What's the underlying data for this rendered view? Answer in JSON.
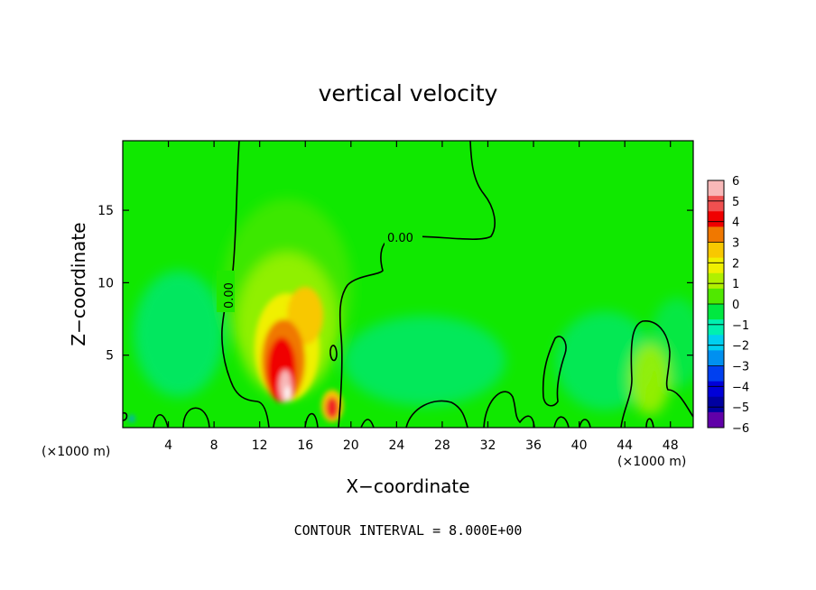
{
  "chart_data": {
    "type": "heatmap",
    "title": "vertical velocity",
    "xlabel": "X−coordinate",
    "ylabel": "Z−coordinate",
    "x_unit": "(×1000 m)",
    "x_unit_right": "(×1000 m)",
    "xlim": [
      0,
      50
    ],
    "ylim": [
      0,
      19.8
    ],
    "x_ticks": [
      4,
      8,
      12,
      16,
      20,
      24,
      28,
      32,
      36,
      40,
      44,
      48
    ],
    "y_ticks": [
      5,
      10,
      15
    ],
    "colorbar": {
      "labels": [
        "6",
        "5",
        "4",
        "3",
        "2",
        "1",
        "0",
        "−1",
        "−2",
        "−3",
        "−4",
        "−5",
        "−6"
      ],
      "colors": [
        "#f8b8b8",
        "#f05050",
        "#f00000",
        "#f07800",
        "#f8c800",
        "#f0f000",
        "#b0f000",
        "#50e800",
        "#00e840",
        "#00f0b0",
        "#00d0f0",
        "#0090f0",
        "#0040f0",
        "#0000d8",
        "#0000a0",
        "#6000a8"
      ]
    },
    "contour_labels": [
      "0.00",
      "0.00"
    ],
    "footer": "CONTOUR INTERVAL = 8.000E+00"
  }
}
